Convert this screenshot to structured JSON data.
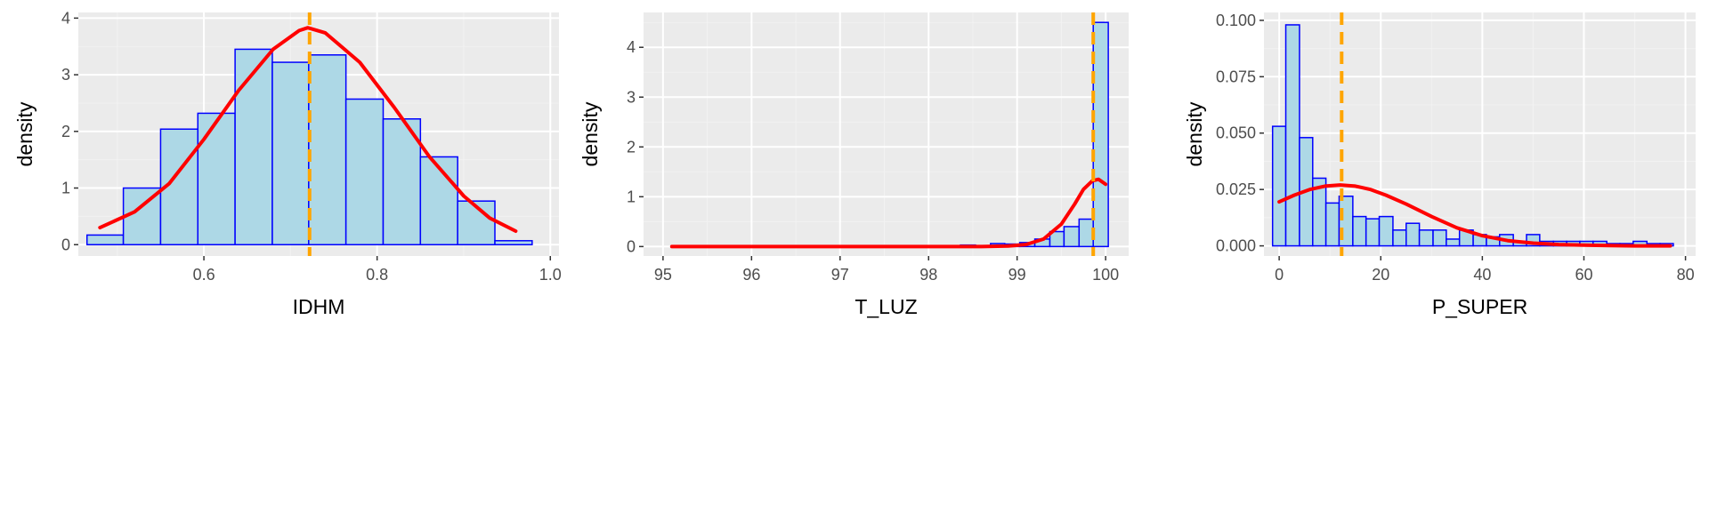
{
  "colors": {
    "panel_background": "#ebebeb",
    "grid_major": "#ffffff",
    "grid_minor": "#f2f2f2",
    "bar_fill": "#add8e6",
    "bar_outline": "#0000ff",
    "density_line": "#ff0000",
    "mean_line": "#ffa500",
    "tick_text": "#4d4d4d",
    "axis_title_text": "#000000"
  },
  "chart_data": [
    {
      "type": "bar",
      "subtype": "histogram",
      "xlabel": "IDHM",
      "ylabel": "density",
      "xlim": [
        0.455,
        1.01
      ],
      "ylim": [
        -0.2,
        4.1
      ],
      "xticks": [
        0.6,
        0.8,
        1.0
      ],
      "xtick_labels": [
        "0.6",
        "0.8",
        "1.0"
      ],
      "yticks": [
        0,
        1,
        2,
        3,
        4
      ],
      "ytick_labels": [
        "0",
        "1",
        "2",
        "3",
        "4"
      ],
      "grid": true,
      "bins": [
        {
          "x0": 0.465,
          "x1": 0.507,
          "density": 0.17
        },
        {
          "x0": 0.507,
          "x1": 0.55,
          "density": 1.0
        },
        {
          "x0": 0.55,
          "x1": 0.593,
          "density": 2.04
        },
        {
          "x0": 0.593,
          "x1": 0.636,
          "density": 2.32
        },
        {
          "x0": 0.636,
          "x1": 0.679,
          "density": 3.45
        },
        {
          "x0": 0.679,
          "x1": 0.721,
          "density": 3.22
        },
        {
          "x0": 0.721,
          "x1": 0.764,
          "density": 3.35
        },
        {
          "x0": 0.764,
          "x1": 0.807,
          "density": 2.57
        },
        {
          "x0": 0.807,
          "x1": 0.85,
          "density": 2.22
        },
        {
          "x0": 0.85,
          "x1": 0.893,
          "density": 1.55
        },
        {
          "x0": 0.893,
          "x1": 0.936,
          "density": 0.77
        },
        {
          "x0": 0.936,
          "x1": 0.979,
          "density": 0.07
        }
      ],
      "density_curve": {
        "x": [
          0.48,
          0.52,
          0.56,
          0.6,
          0.64,
          0.68,
          0.71,
          0.72,
          0.74,
          0.78,
          0.82,
          0.86,
          0.9,
          0.93,
          0.96
        ],
        "y": [
          0.3,
          0.58,
          1.08,
          1.86,
          2.72,
          3.45,
          3.78,
          3.83,
          3.74,
          3.22,
          2.42,
          1.56,
          0.86,
          0.47,
          0.24
        ]
      },
      "mean_line_x": 0.722
    },
    {
      "type": "bar",
      "subtype": "histogram",
      "xlabel": "T_LUZ",
      "ylabel": "density",
      "xlim": [
        94.78,
        100.26
      ],
      "ylim": [
        -0.19,
        4.7
      ],
      "xticks": [
        95,
        96,
        97,
        98,
        99,
        100
      ],
      "xtick_labels": [
        "95",
        "96",
        "97",
        "98",
        "99",
        "100"
      ],
      "yticks": [
        0,
        1,
        2,
        3,
        4
      ],
      "ytick_labels": [
        "0",
        "1",
        "2",
        "3",
        "4"
      ],
      "grid": true,
      "bins": [
        {
          "x0": 98.36,
          "x1": 98.53,
          "density": 0.03
        },
        {
          "x0": 98.53,
          "x1": 98.7,
          "density": 0.02
        },
        {
          "x0": 98.7,
          "x1": 98.86,
          "density": 0.06
        },
        {
          "x0": 98.86,
          "x1": 99.03,
          "density": 0.05
        },
        {
          "x0": 99.03,
          "x1": 99.2,
          "density": 0.08
        },
        {
          "x0": 99.2,
          "x1": 99.37,
          "density": 0.15
        },
        {
          "x0": 99.37,
          "x1": 99.53,
          "density": 0.3
        },
        {
          "x0": 99.53,
          "x1": 99.7,
          "density": 0.4
        },
        {
          "x0": 99.7,
          "x1": 99.86,
          "density": 0.55
        },
        {
          "x0": 99.86,
          "x1": 100.03,
          "density": 4.5
        }
      ],
      "density_curve": {
        "x": [
          95.1,
          96.0,
          97.0,
          98.0,
          98.6,
          98.9,
          99.1,
          99.3,
          99.5,
          99.65,
          99.75,
          99.85,
          99.92,
          100.0
        ],
        "y": [
          0.0,
          0.0,
          0.0,
          0.0,
          0.0,
          0.01,
          0.04,
          0.15,
          0.45,
          0.85,
          1.15,
          1.32,
          1.35,
          1.25
        ]
      },
      "mean_line_x": 99.86
    },
    {
      "type": "bar",
      "subtype": "histogram",
      "xlabel": "P_SUPER",
      "ylabel": "density",
      "xlim": [
        -3,
        82
      ],
      "ylim": [
        -0.0045,
        0.1035
      ],
      "xticks": [
        0,
        20,
        40,
        60,
        80
      ],
      "xtick_labels": [
        "0",
        "20",
        "40",
        "60",
        "80"
      ],
      "yticks": [
        0.0,
        0.025,
        0.05,
        0.075,
        0.1
      ],
      "ytick_labels": [
        "0.000",
        "0.025",
        "0.050",
        "0.075",
        "0.100"
      ],
      "grid": true,
      "bins": [
        {
          "x0": -1.3,
          "x1": 1.3,
          "density": 0.053
        },
        {
          "x0": 1.3,
          "x1": 4.0,
          "density": 0.098
        },
        {
          "x0": 4.0,
          "x1": 6.6,
          "density": 0.048
        },
        {
          "x0": 6.6,
          "x1": 9.2,
          "density": 0.03
        },
        {
          "x0": 9.2,
          "x1": 11.8,
          "density": 0.019
        },
        {
          "x0": 11.8,
          "x1": 14.5,
          "density": 0.022
        },
        {
          "x0": 14.5,
          "x1": 17.1,
          "density": 0.013
        },
        {
          "x0": 17.1,
          "x1": 19.7,
          "density": 0.012
        },
        {
          "x0": 19.7,
          "x1": 22.4,
          "density": 0.013
        },
        {
          "x0": 22.4,
          "x1": 25.0,
          "density": 0.007
        },
        {
          "x0": 25.0,
          "x1": 27.6,
          "density": 0.01
        },
        {
          "x0": 27.6,
          "x1": 30.3,
          "density": 0.007
        },
        {
          "x0": 30.3,
          "x1": 32.9,
          "density": 0.007
        },
        {
          "x0": 32.9,
          "x1": 35.5,
          "density": 0.003
        },
        {
          "x0": 35.5,
          "x1": 38.2,
          "density": 0.007
        },
        {
          "x0": 38.2,
          "x1": 40.8,
          "density": 0.005
        },
        {
          "x0": 40.8,
          "x1": 43.4,
          "density": 0.004
        },
        {
          "x0": 43.4,
          "x1": 46.1,
          "density": 0.005
        },
        {
          "x0": 46.1,
          "x1": 48.7,
          "density": 0.002
        },
        {
          "x0": 48.7,
          "x1": 51.3,
          "density": 0.005
        },
        {
          "x0": 51.3,
          "x1": 54.0,
          "density": 0.002
        },
        {
          "x0": 54.0,
          "x1": 56.6,
          "density": 0.002
        },
        {
          "x0": 56.6,
          "x1": 59.2,
          "density": 0.002
        },
        {
          "x0": 59.2,
          "x1": 61.8,
          "density": 0.002
        },
        {
          "x0": 61.8,
          "x1": 64.5,
          "density": 0.002
        },
        {
          "x0": 64.5,
          "x1": 67.1,
          "density": 0.001
        },
        {
          "x0": 67.1,
          "x1": 69.7,
          "density": 0.001
        },
        {
          "x0": 69.7,
          "x1": 72.4,
          "density": 0.002
        },
        {
          "x0": 72.4,
          "x1": 75.0,
          "density": 0.001
        },
        {
          "x0": 75.0,
          "x1": 77.6,
          "density": 0.001
        }
      ],
      "density_curve": {
        "x": [
          0,
          3,
          6,
          9,
          12,
          15,
          18,
          21,
          25,
          30,
          35,
          40,
          45,
          50,
          55,
          60,
          65,
          70,
          77
        ],
        "y": [
          0.0195,
          0.0225,
          0.025,
          0.0265,
          0.027,
          0.0265,
          0.025,
          0.0225,
          0.0185,
          0.013,
          0.008,
          0.0045,
          0.0023,
          0.0012,
          0.0006,
          0.0003,
          0.0001,
          0.0,
          0.0
        ]
      },
      "mean_line_x": 12.3
    }
  ]
}
